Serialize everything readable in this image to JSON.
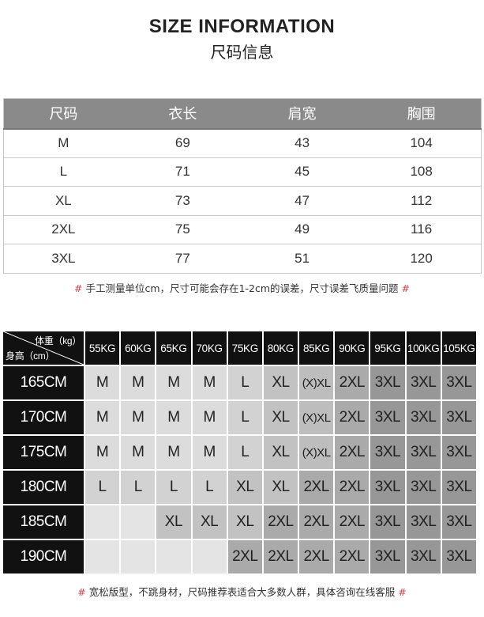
{
  "title_en": "SIZE INFORMATION",
  "title_cn": "尺码信息",
  "size_table": {
    "headers": [
      "尺码",
      "衣长",
      "肩宽",
      "胸围"
    ],
    "rows": [
      [
        "M",
        "69",
        "43",
        "104"
      ],
      [
        "L",
        "71",
        "45",
        "108"
      ],
      [
        "XL",
        "73",
        "47",
        "112"
      ],
      [
        "2XL",
        "75",
        "49",
        "116"
      ],
      [
        "3XL",
        "77",
        "51",
        "120"
      ]
    ]
  },
  "note1": {
    "mark": "#",
    "text": "手工测量单位cm，尺寸可能会存在1-2cm的误差，尺寸误差飞质量问题"
  },
  "rec_table": {
    "corner_weight": "体重（kg）",
    "corner_height": "身高（cm）",
    "weights": [
      "55KG",
      "60KG",
      "65KG",
      "70KG",
      "75KG",
      "80KG",
      "85KG",
      "90KG",
      "95KG",
      "100KG",
      "105KG"
    ],
    "rows": [
      {
        "height": "165CM",
        "sizes": [
          "M",
          "M",
          "M",
          "M",
          "L",
          "XL",
          "(X)XL",
          "2XL",
          "3XL",
          "3XL",
          "3XL"
        ]
      },
      {
        "height": "170CM",
        "sizes": [
          "M",
          "M",
          "M",
          "M",
          "L",
          "XL",
          "(X)XL",
          "2XL",
          "3XL",
          "3XL",
          "3XL"
        ]
      },
      {
        "height": "175CM",
        "sizes": [
          "M",
          "M",
          "M",
          "M",
          "L",
          "XL",
          "(X)XL",
          "2XL",
          "3XL",
          "3XL",
          "3XL"
        ]
      },
      {
        "height": "180CM",
        "sizes": [
          "L",
          "L",
          "L",
          "L",
          "XL",
          "XL",
          "2XL",
          "2XL",
          "3XL",
          "3XL",
          "3XL"
        ]
      },
      {
        "height": "185CM",
        "sizes": [
          "",
          "",
          "XL",
          "XL",
          "XL",
          "2XL",
          "2XL",
          "2XL",
          "3XL",
          "3XL",
          "3XL"
        ]
      },
      {
        "height": "190CM",
        "sizes": [
          "",
          "",
          "",
          "",
          "2XL",
          "2XL",
          "2XL",
          "2XL",
          "3XL",
          "3XL",
          "3XL"
        ]
      }
    ],
    "cell_colors": {
      "": "#e4e4e4",
      "M": "#dcdcdc",
      "L": "#d2d2d2",
      "XL": "#c2c2c2",
      "(X)XL": "#bdbdbd",
      "2XL": "#aaaaaa",
      "3XL": "#979797"
    }
  },
  "note2": {
    "mark": "#",
    "text": "宽松版型，不跳身材，尺码推荐表适合大多数人群，具体咨询在线客服"
  }
}
